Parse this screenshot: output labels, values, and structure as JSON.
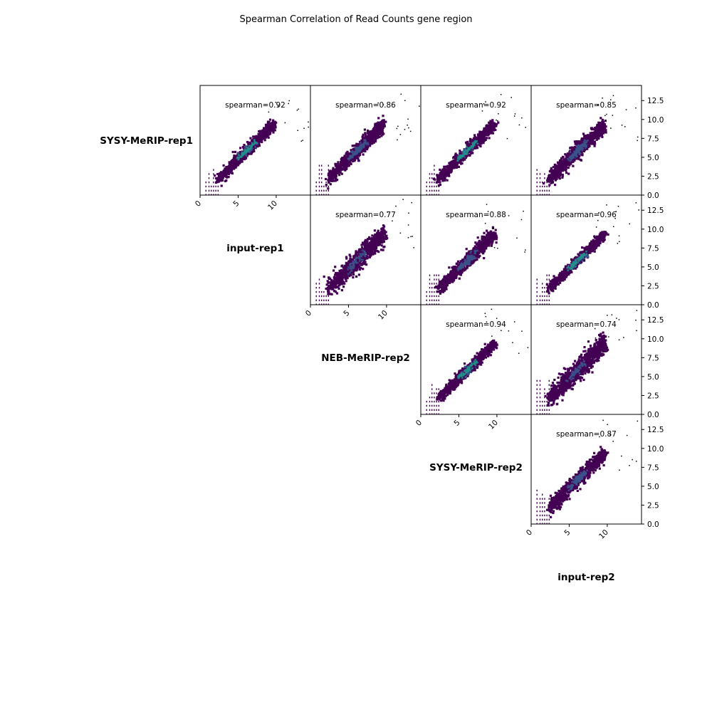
{
  "chart_data": {
    "type": "heatmap",
    "title": "Spearman Correlation of Read Counts gene region",
    "samples": [
      "SYSY-MeRIP-rep1",
      "input-rep1",
      "NEB-MeRIP-rep2",
      "SYSY-MeRIP-rep2",
      "input-rep2"
    ],
    "xlim": [
      0,
      14.5
    ],
    "ylim": [
      0,
      14.5
    ],
    "x_ticks": [
      "0",
      "5",
      "10"
    ],
    "y_ticks": [
      "0.0",
      "2.5",
      "5.0",
      "7.5",
      "10.0",
      "12.5"
    ],
    "colors": {
      "low": "#440154",
      "mid": "#3b528b",
      "high": "#21918c",
      "frame": "#000000"
    },
    "panels": [
      {
        "row": "SYSY-MeRIP-rep1",
        "col": "input-rep1",
        "spearman": 0.92,
        "label": "spearman=0.92"
      },
      {
        "row": "SYSY-MeRIP-rep1",
        "col": "NEB-MeRIP-rep2",
        "spearman": 0.86,
        "label": "spearman=0.86"
      },
      {
        "row": "SYSY-MeRIP-rep1",
        "col": "SYSY-MeRIP-rep2",
        "spearman": 0.92,
        "label": "spearman=0.92"
      },
      {
        "row": "SYSY-MeRIP-rep1",
        "col": "input-rep2",
        "spearman": 0.85,
        "label": "spearman=0.85"
      },
      {
        "row": "input-rep1",
        "col": "NEB-MeRIP-rep2",
        "spearman": 0.77,
        "label": "spearman=0.77"
      },
      {
        "row": "input-rep1",
        "col": "SYSY-MeRIP-rep2",
        "spearman": 0.88,
        "label": "spearman=0.88"
      },
      {
        "row": "input-rep1",
        "col": "input-rep2",
        "spearman": 0.96,
        "label": "spearman=0.96"
      },
      {
        "row": "NEB-MeRIP-rep2",
        "col": "SYSY-MeRIP-rep2",
        "spearman": 0.94,
        "label": "spearman=0.94"
      },
      {
        "row": "NEB-MeRIP-rep2",
        "col": "input-rep2",
        "spearman": 0.74,
        "label": "spearman=0.74"
      },
      {
        "row": "SYSY-MeRIP-rep2",
        "col": "input-rep2",
        "spearman": 0.87,
        "label": "spearman=0.87"
      }
    ]
  }
}
